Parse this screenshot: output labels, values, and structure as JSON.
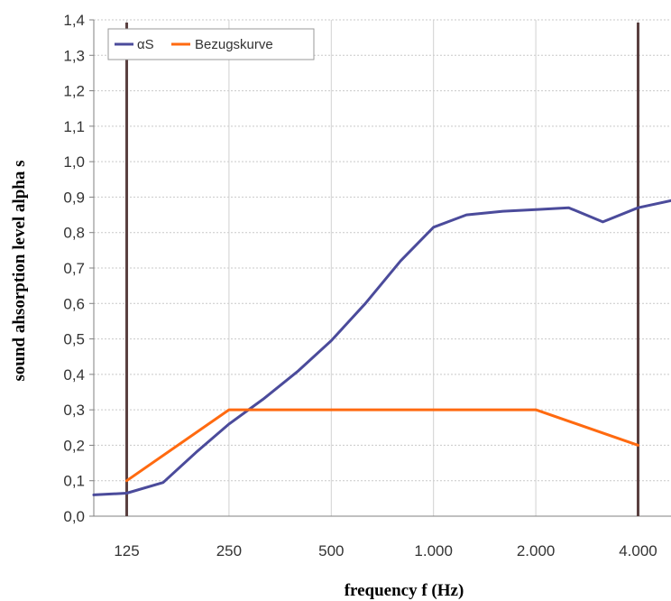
{
  "chart_data": {
    "type": "line",
    "xscale": "log",
    "xlabel": "frequency f (Hz)",
    "ylabel": "sound ahsorption level alpha s",
    "xlim": [
      100,
      5000
    ],
    "ylim": [
      0,
      1.4
    ],
    "yticks": [
      {
        "value": 0.0,
        "label": "0,0"
      },
      {
        "value": 0.1,
        "label": "0,1"
      },
      {
        "value": 0.2,
        "label": "0,2"
      },
      {
        "value": 0.3,
        "label": "0,3"
      },
      {
        "value": 0.4,
        "label": "0,4"
      },
      {
        "value": 0.5,
        "label": "0,5"
      },
      {
        "value": 0.6,
        "label": "0,6"
      },
      {
        "value": 0.7,
        "label": "0,7"
      },
      {
        "value": 0.8,
        "label": "0,8"
      },
      {
        "value": 0.9,
        "label": "0,9"
      },
      {
        "value": 1.0,
        "label": "1,0"
      },
      {
        "value": 1.1,
        "label": "1,1"
      },
      {
        "value": 1.2,
        "label": "1,2"
      },
      {
        "value": 1.3,
        "label": "1,3"
      },
      {
        "value": 1.4,
        "label": "1,4"
      }
    ],
    "xticks": [
      {
        "value": 125,
        "label": "125"
      },
      {
        "value": 250,
        "label": "250"
      },
      {
        "value": 500,
        "label": "500"
      },
      {
        "value": 1000,
        "label": "1.000"
      },
      {
        "value": 2000,
        "label": "2.000"
      },
      {
        "value": 4000,
        "label": "4.000"
      }
    ],
    "grid": true,
    "legend": "top-left",
    "reference_lines_x": [
      125,
      4000
    ],
    "series": [
      {
        "name": "αS",
        "color": "#4b4b9b",
        "x": [
          100,
          125,
          160,
          200,
          250,
          315,
          400,
          500,
          630,
          800,
          1000,
          1250,
          1600,
          2000,
          2500,
          3150,
          4000,
          5000
        ],
        "y": [
          0.06,
          0.065,
          0.095,
          0.18,
          0.26,
          0.33,
          0.41,
          0.495,
          0.6,
          0.72,
          0.815,
          0.85,
          0.86,
          0.865,
          0.87,
          0.83,
          0.87,
          0.89
        ]
      },
      {
        "name": "Bezugskurve",
        "color": "#ff6a10",
        "x": [
          125,
          250,
          500,
          1000,
          2000,
          4000
        ],
        "y": [
          0.1,
          0.3,
          0.3,
          0.3,
          0.3,
          0.2
        ]
      }
    ]
  }
}
